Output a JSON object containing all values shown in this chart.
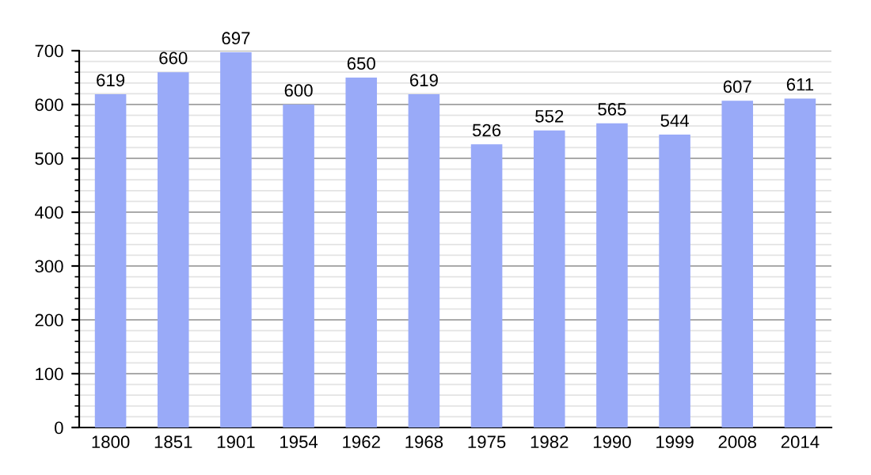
{
  "chart_data": {
    "type": "bar",
    "categories": [
      "1800",
      "1851",
      "1901",
      "1954",
      "1962",
      "1968",
      "1975",
      "1982",
      "1990",
      "1999",
      "2008",
      "2014"
    ],
    "values": [
      619,
      660,
      697,
      600,
      650,
      619,
      526,
      552,
      565,
      544,
      607,
      611
    ],
    "color": "#99aaf8",
    "ylim": [
      0,
      700
    ],
    "yticks": [
      0,
      {
        "value": 20,
        "label": null
      },
      {
        "value": 40,
        "label": null
      },
      {
        "value": 60,
        "label": null
      },
      {
        "value": 80,
        "label": null
      },
      100,
      {
        "value": 120,
        "label": null
      },
      {
        "value": 140,
        "label": null
      },
      {
        "value": 160,
        "label": null
      },
      {
        "value": 180,
        "label": null
      },
      200,
      {
        "value": 220,
        "label": null
      },
      {
        "value": 240,
        "label": null
      },
      {
        "value": 260,
        "label": null
      },
      {
        "value": 280,
        "label": null
      },
      300,
      {
        "value": 320,
        "label": null
      },
      {
        "value": 340,
        "label": null
      },
      {
        "value": 360,
        "label": null
      },
      {
        "value": 380,
        "label": null
      },
      400,
      {
        "value": 420,
        "label": null
      },
      {
        "value": 440,
        "label": null
      },
      {
        "value": 460,
        "label": null
      },
      {
        "value": 480,
        "label": null
      },
      500,
      {
        "value": 520,
        "label": null
      },
      {
        "value": 540,
        "label": null
      },
      {
        "value": 560,
        "label": null
      },
      {
        "value": 580,
        "label": null
      },
      600,
      {
        "value": 620,
        "label": null
      },
      {
        "value": 640,
        "label": null
      },
      {
        "value": 660,
        "label": null
      },
      {
        "value": 680,
        "label": null
      },
      700
    ],
    "grid": "y",
    "data_labels": true
  }
}
